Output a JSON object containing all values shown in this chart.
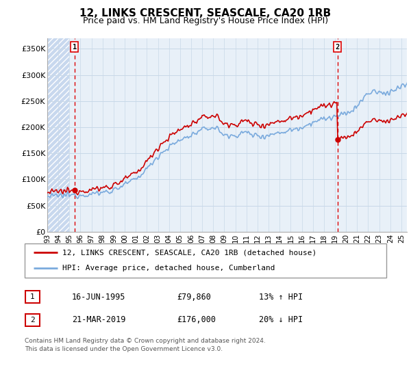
{
  "title": "12, LINKS CRESCENT, SEASCALE, CA20 1RB",
  "subtitle": "Price paid vs. HM Land Registry's House Price Index (HPI)",
  "ylabel_ticks": [
    "£0",
    "£50K",
    "£100K",
    "£150K",
    "£200K",
    "£250K",
    "£300K",
    "£350K"
  ],
  "ytick_values": [
    0,
    50000,
    100000,
    150000,
    200000,
    250000,
    300000,
    350000
  ],
  "ylim": [
    0,
    370000
  ],
  "xlim_start": 1993.0,
  "xlim_end": 2025.5,
  "xtick_years": [
    1993,
    1994,
    1995,
    1996,
    1997,
    1998,
    1999,
    2000,
    2001,
    2002,
    2003,
    2004,
    2005,
    2006,
    2007,
    2008,
    2009,
    2010,
    2011,
    2012,
    2013,
    2014,
    2015,
    2016,
    2017,
    2018,
    2019,
    2020,
    2021,
    2022,
    2023,
    2024,
    2025
  ],
  "purchase1_date": 1995.46,
  "purchase1_price": 79860,
  "purchase2_date": 2019.22,
  "purchase2_price": 176000,
  "hpi_line_color": "#7aaadd",
  "price_line_color": "#cc0000",
  "vline_color": "#dd0000",
  "bg_hatch_color": "#d8e8f8",
  "bg_plain_color": "#e8f0f8",
  "grid_color": "#c8d8e8",
  "legend_line1": "12, LINKS CRESCENT, SEASCALE, CA20 1RB (detached house)",
  "legend_line2": "HPI: Average price, detached house, Cumberland",
  "table_row1": [
    "1",
    "16-JUN-1995",
    "£79,860",
    "13% ↑ HPI"
  ],
  "table_row2": [
    "2",
    "21-MAR-2019",
    "£176,000",
    "20% ↓ HPI"
  ],
  "footnote": "Contains HM Land Registry data © Crown copyright and database right 2024.\nThis data is licensed under the Open Government Licence v3.0."
}
